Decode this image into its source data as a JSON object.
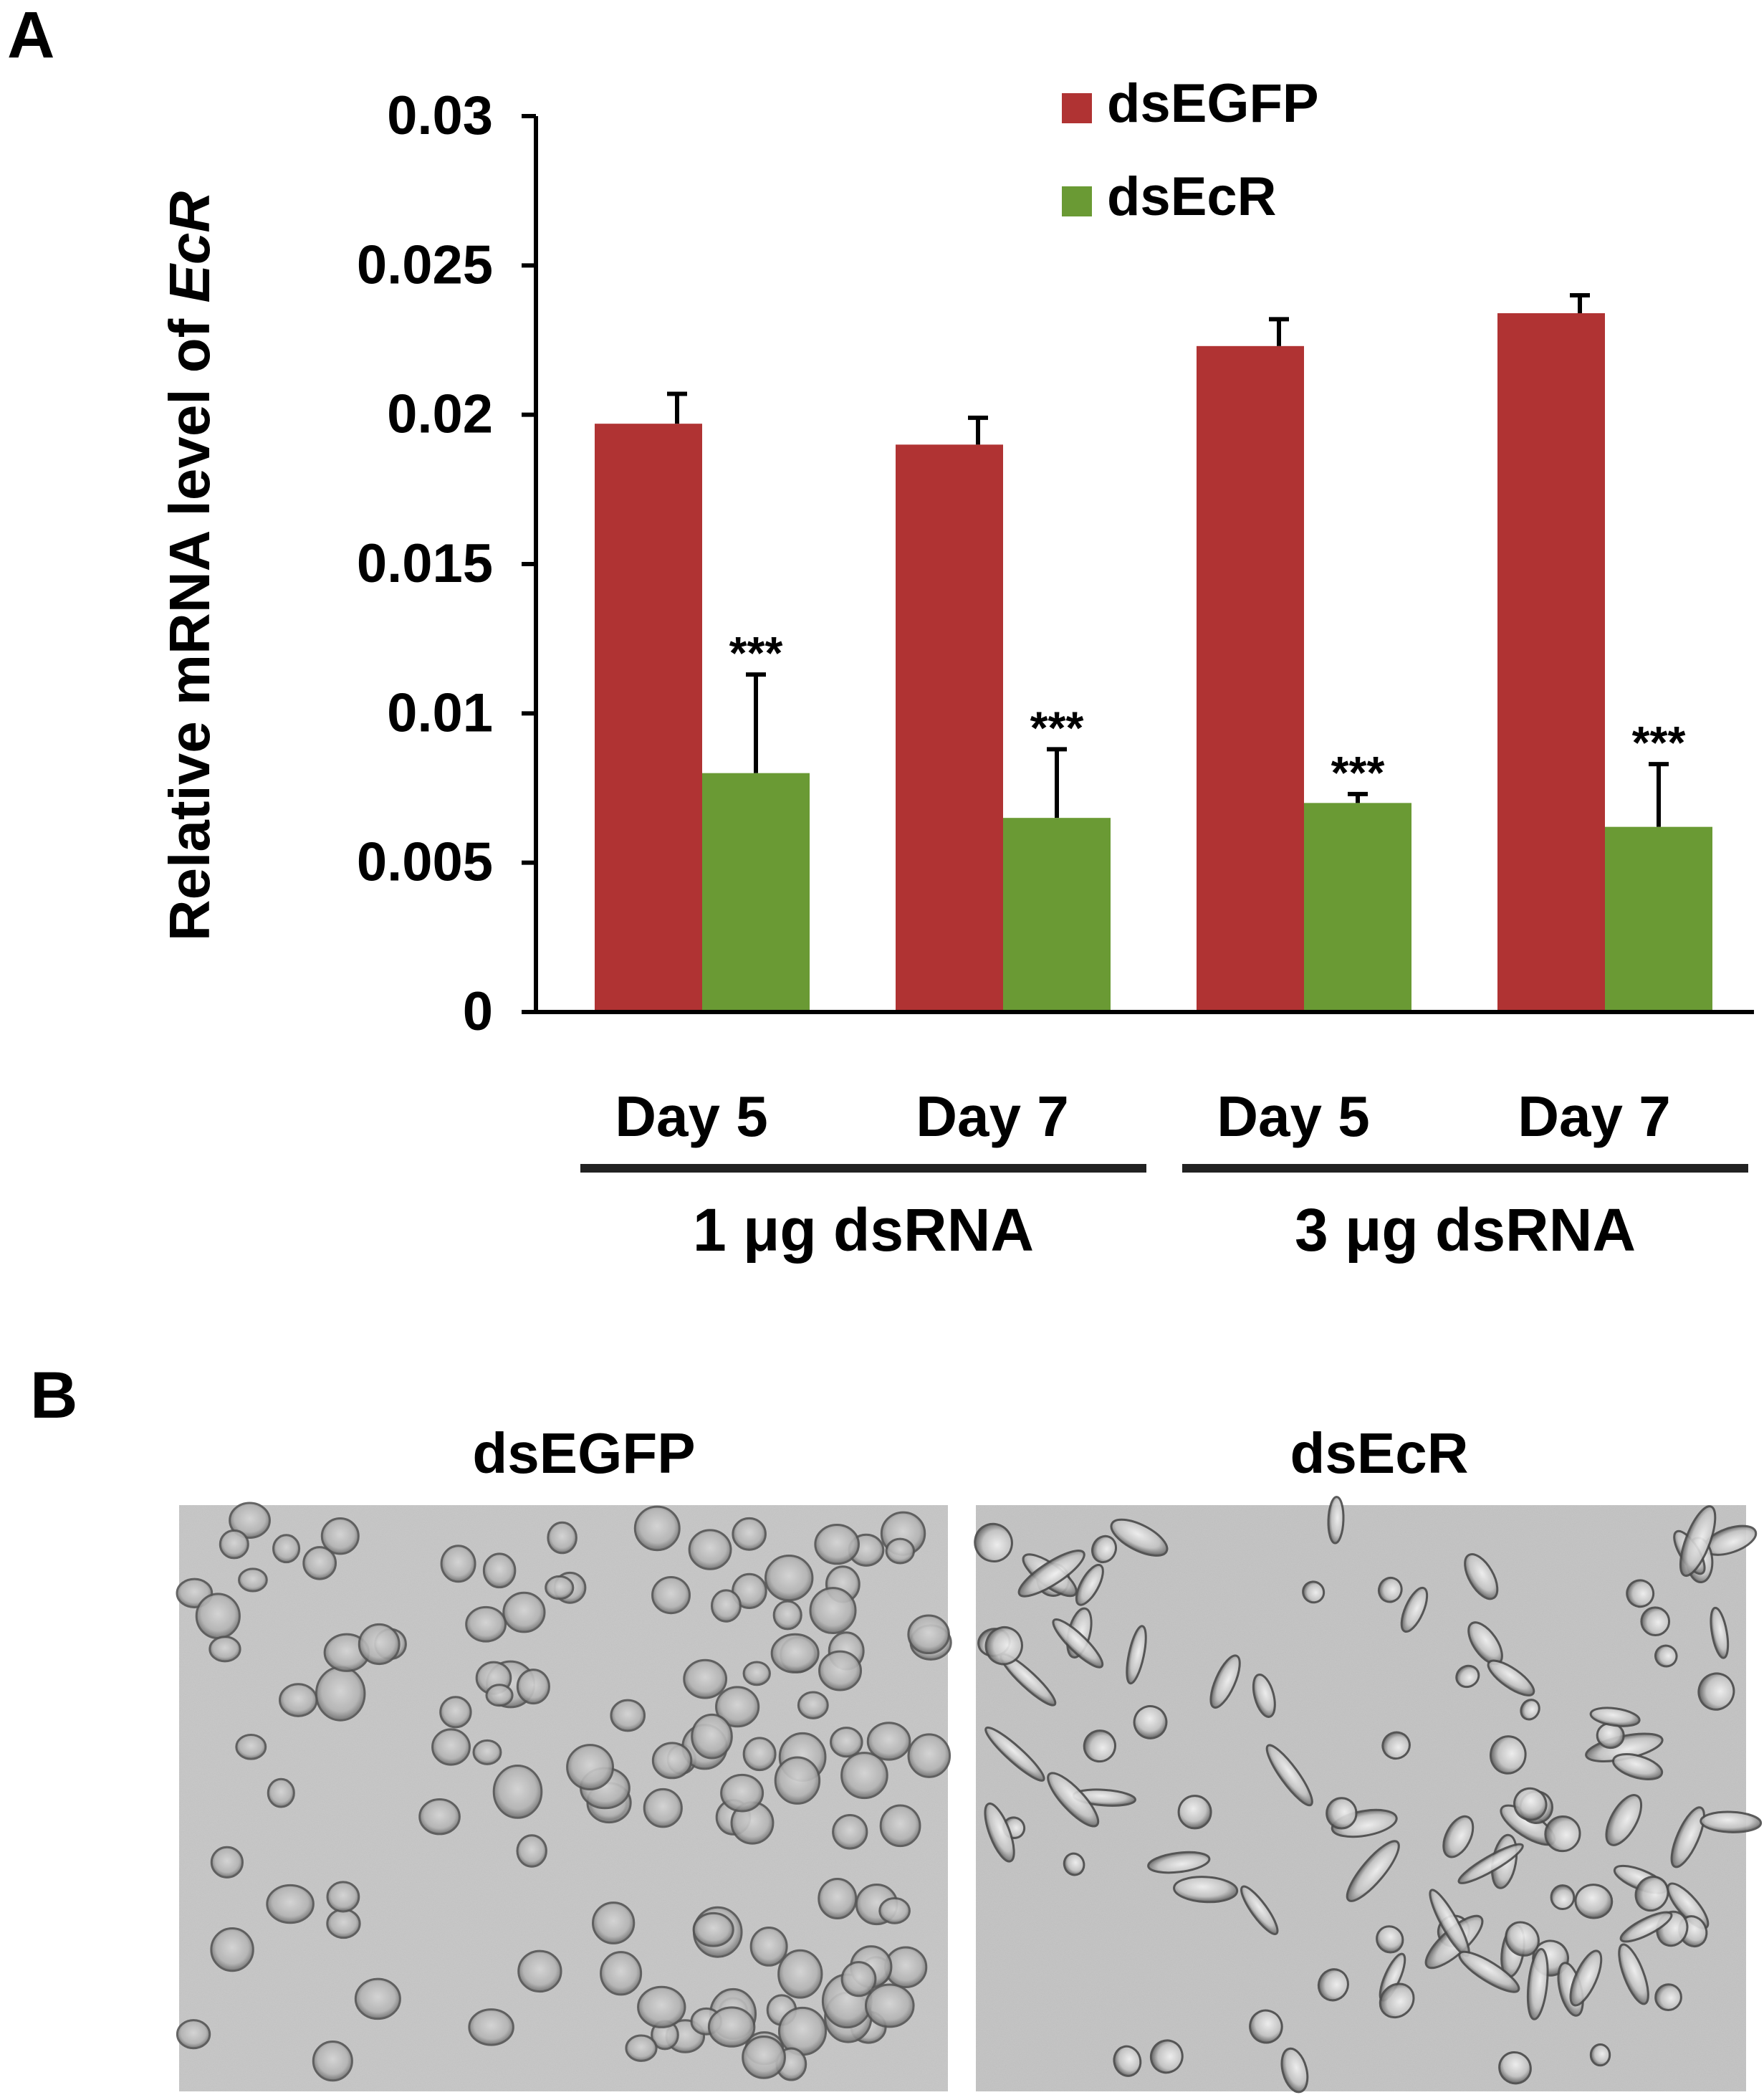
{
  "panel_a": {
    "label": "A",
    "chart_data": {
      "type": "bar",
      "ylabel_prefix": "Relative mRNA level of ",
      "ylabel_italic": "EcR",
      "ylim": [
        0,
        0.03
      ],
      "yticks": [
        "0",
        "0.005",
        "0.01",
        "0.015",
        "0.02",
        "0.025",
        "0.03"
      ],
      "categories": [
        "Day 5",
        "Day 7",
        "Day 5",
        "Day 7"
      ],
      "groups": [
        {
          "label": "1 μg dsRNA",
          "categories": [
            0,
            1
          ]
        },
        {
          "label": "3 μg dsRNA",
          "categories": [
            2,
            3
          ]
        }
      ],
      "series": [
        {
          "name": "dsEGFP",
          "color": "#b03333",
          "values": [
            0.0197,
            0.019,
            0.0223,
            0.0234
          ],
          "errors": [
            0.001,
            0.0009,
            0.0009,
            0.0006
          ],
          "annotations": [
            "",
            "",
            "",
            ""
          ]
        },
        {
          "name": "dsEcR",
          "color": "#6a9a34",
          "values": [
            0.008,
            0.0065,
            0.007,
            0.0062
          ],
          "errors": [
            0.0033,
            0.0023,
            0.0003,
            0.0021
          ],
          "annotations": [
            "***",
            "***",
            "***",
            "***"
          ]
        }
      ],
      "legend_position": "top-right",
      "grid": false
    }
  },
  "panel_b": {
    "label": "B",
    "images": [
      {
        "title": "dsEGFP",
        "description": "round cells micrograph"
      },
      {
        "title": "dsEcR",
        "description": "elongated cells micrograph"
      }
    ]
  }
}
